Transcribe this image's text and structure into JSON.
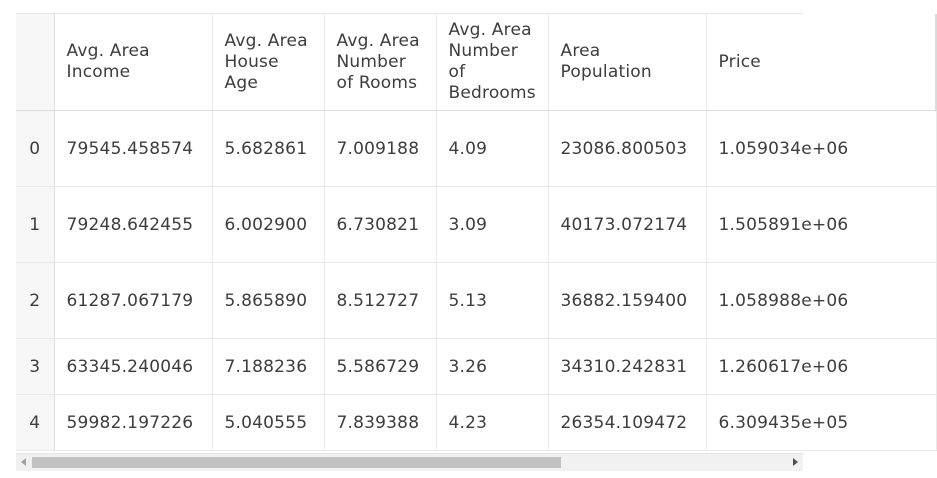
{
  "table": {
    "index_header": "",
    "columns": [
      "Avg. Area Income",
      "Avg. Area House Age",
      "Avg. Area Number of Rooms",
      "Avg. Area Number of Bedrooms",
      "Area Population",
      "Price"
    ],
    "rows": [
      {
        "index": "0",
        "cells": [
          "79545.458574",
          "5.682861",
          "7.009188",
          "4.09",
          "23086.800503",
          "1.059034e+06"
        ]
      },
      {
        "index": "1",
        "cells": [
          "79248.642455",
          "6.002900",
          "6.730821",
          "3.09",
          "40173.072174",
          "1.505891e+06"
        ]
      },
      {
        "index": "2",
        "cells": [
          "61287.067179",
          "5.865890",
          "8.512727",
          "5.13",
          "36882.159400",
          "1.058988e+06"
        ]
      },
      {
        "index": "3",
        "cells": [
          "63345.240046",
          "7.188236",
          "5.586729",
          "3.26",
          "34310.242831",
          "1.260617e+06"
        ]
      },
      {
        "index": "4",
        "cells": [
          "59982.197226",
          "5.040555",
          "7.839388",
          "4.23",
          "26354.109472",
          "6.309435e+05"
        ]
      }
    ]
  },
  "scrollbar": {
    "position_fraction": 0.0,
    "visible_fraction": 0.7
  }
}
